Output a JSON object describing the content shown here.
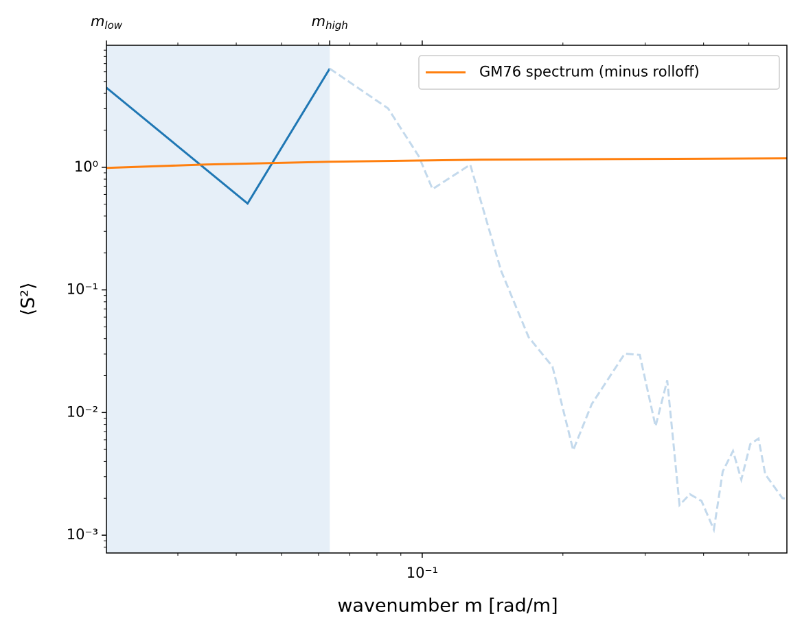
{
  "chart_data": {
    "type": "line",
    "xlabel": "wavenumber m [rad/m]",
    "ylabel": "⟨S²⟩",
    "xscale": "log",
    "yscale": "log",
    "xlim": [
      0.0211,
      0.603
    ],
    "ylim": [
      0.000716,
      9.87
    ],
    "xticks": [
      {
        "value": 0.1,
        "label": "10⁻¹"
      }
    ],
    "yticks": [
      {
        "value": 0.001,
        "label": "10⁻³"
      },
      {
        "value": 0.01,
        "label": "10⁻²"
      },
      {
        "value": 0.1,
        "label": "10⁻¹"
      },
      {
        "value": 1,
        "label": "10⁰"
      }
    ],
    "xminor": [
      0.03,
      0.04,
      0.05,
      0.06,
      0.07,
      0.08,
      0.09,
      0.2,
      0.3,
      0.4,
      0.5
    ],
    "yminor": [
      0.0008,
      0.0009,
      0.002,
      0.003,
      0.004,
      0.005,
      0.006,
      0.007,
      0.008,
      0.009,
      0.02,
      0.03,
      0.04,
      0.05,
      0.06,
      0.07,
      0.08,
      0.09,
      0.2,
      0.3,
      0.4,
      0.5,
      0.6,
      0.7,
      0.8,
      0.9,
      2,
      3,
      4,
      5,
      6,
      7,
      8,
      9
    ],
    "top_xticks": [
      {
        "value": 0.0211,
        "label": "m",
        "sub": "low"
      },
      {
        "value": 0.0634,
        "label": "m",
        "sub": "high"
      }
    ],
    "shade": {
      "color": "#e6eff8"
    },
    "legend": "upper right",
    "series": [
      {
        "color": "#1f77b4",
        "style": "solid",
        "x": [
          0.0211,
          0.0423,
          0.0634
        ],
        "values": [
          4.45,
          0.506,
          6.37
        ]
      },
      {
        "color": "#c3d9ec",
        "style": "dashed",
        "x": [
          0.0634,
          0.0845,
          0.0983,
          0.1052,
          0.1267,
          0.1475,
          0.1689,
          0.19,
          0.2104,
          0.2305,
          0.2712,
          0.2921,
          0.3157,
          0.3344,
          0.3553,
          0.3738,
          0.396,
          0.4207,
          0.4396,
          0.4624,
          0.4817,
          0.5035,
          0.5243,
          0.542,
          0.59,
          0.603
        ],
        "values": [
          6.37,
          3.02,
          1.23,
          0.663,
          1.05,
          0.143,
          0.0412,
          0.0237,
          0.00493,
          0.0117,
          0.0302,
          0.0295,
          0.00773,
          0.0183,
          0.00176,
          0.00216,
          0.0019,
          0.00111,
          0.00331,
          0.00486,
          0.00284,
          0.00553,
          0.00613,
          0.00314,
          0.002,
          0.00198
        ]
      },
      {
        "name": "GM76 spectrum (minus rolloff)",
        "color": "#ff7f0e",
        "style": "solid",
        "x": [
          0.0211,
          0.0345,
          0.0634,
          0.1333,
          0.603
        ],
        "values": [
          0.987,
          1.053,
          1.108,
          1.152,
          1.182
        ]
      }
    ]
  }
}
